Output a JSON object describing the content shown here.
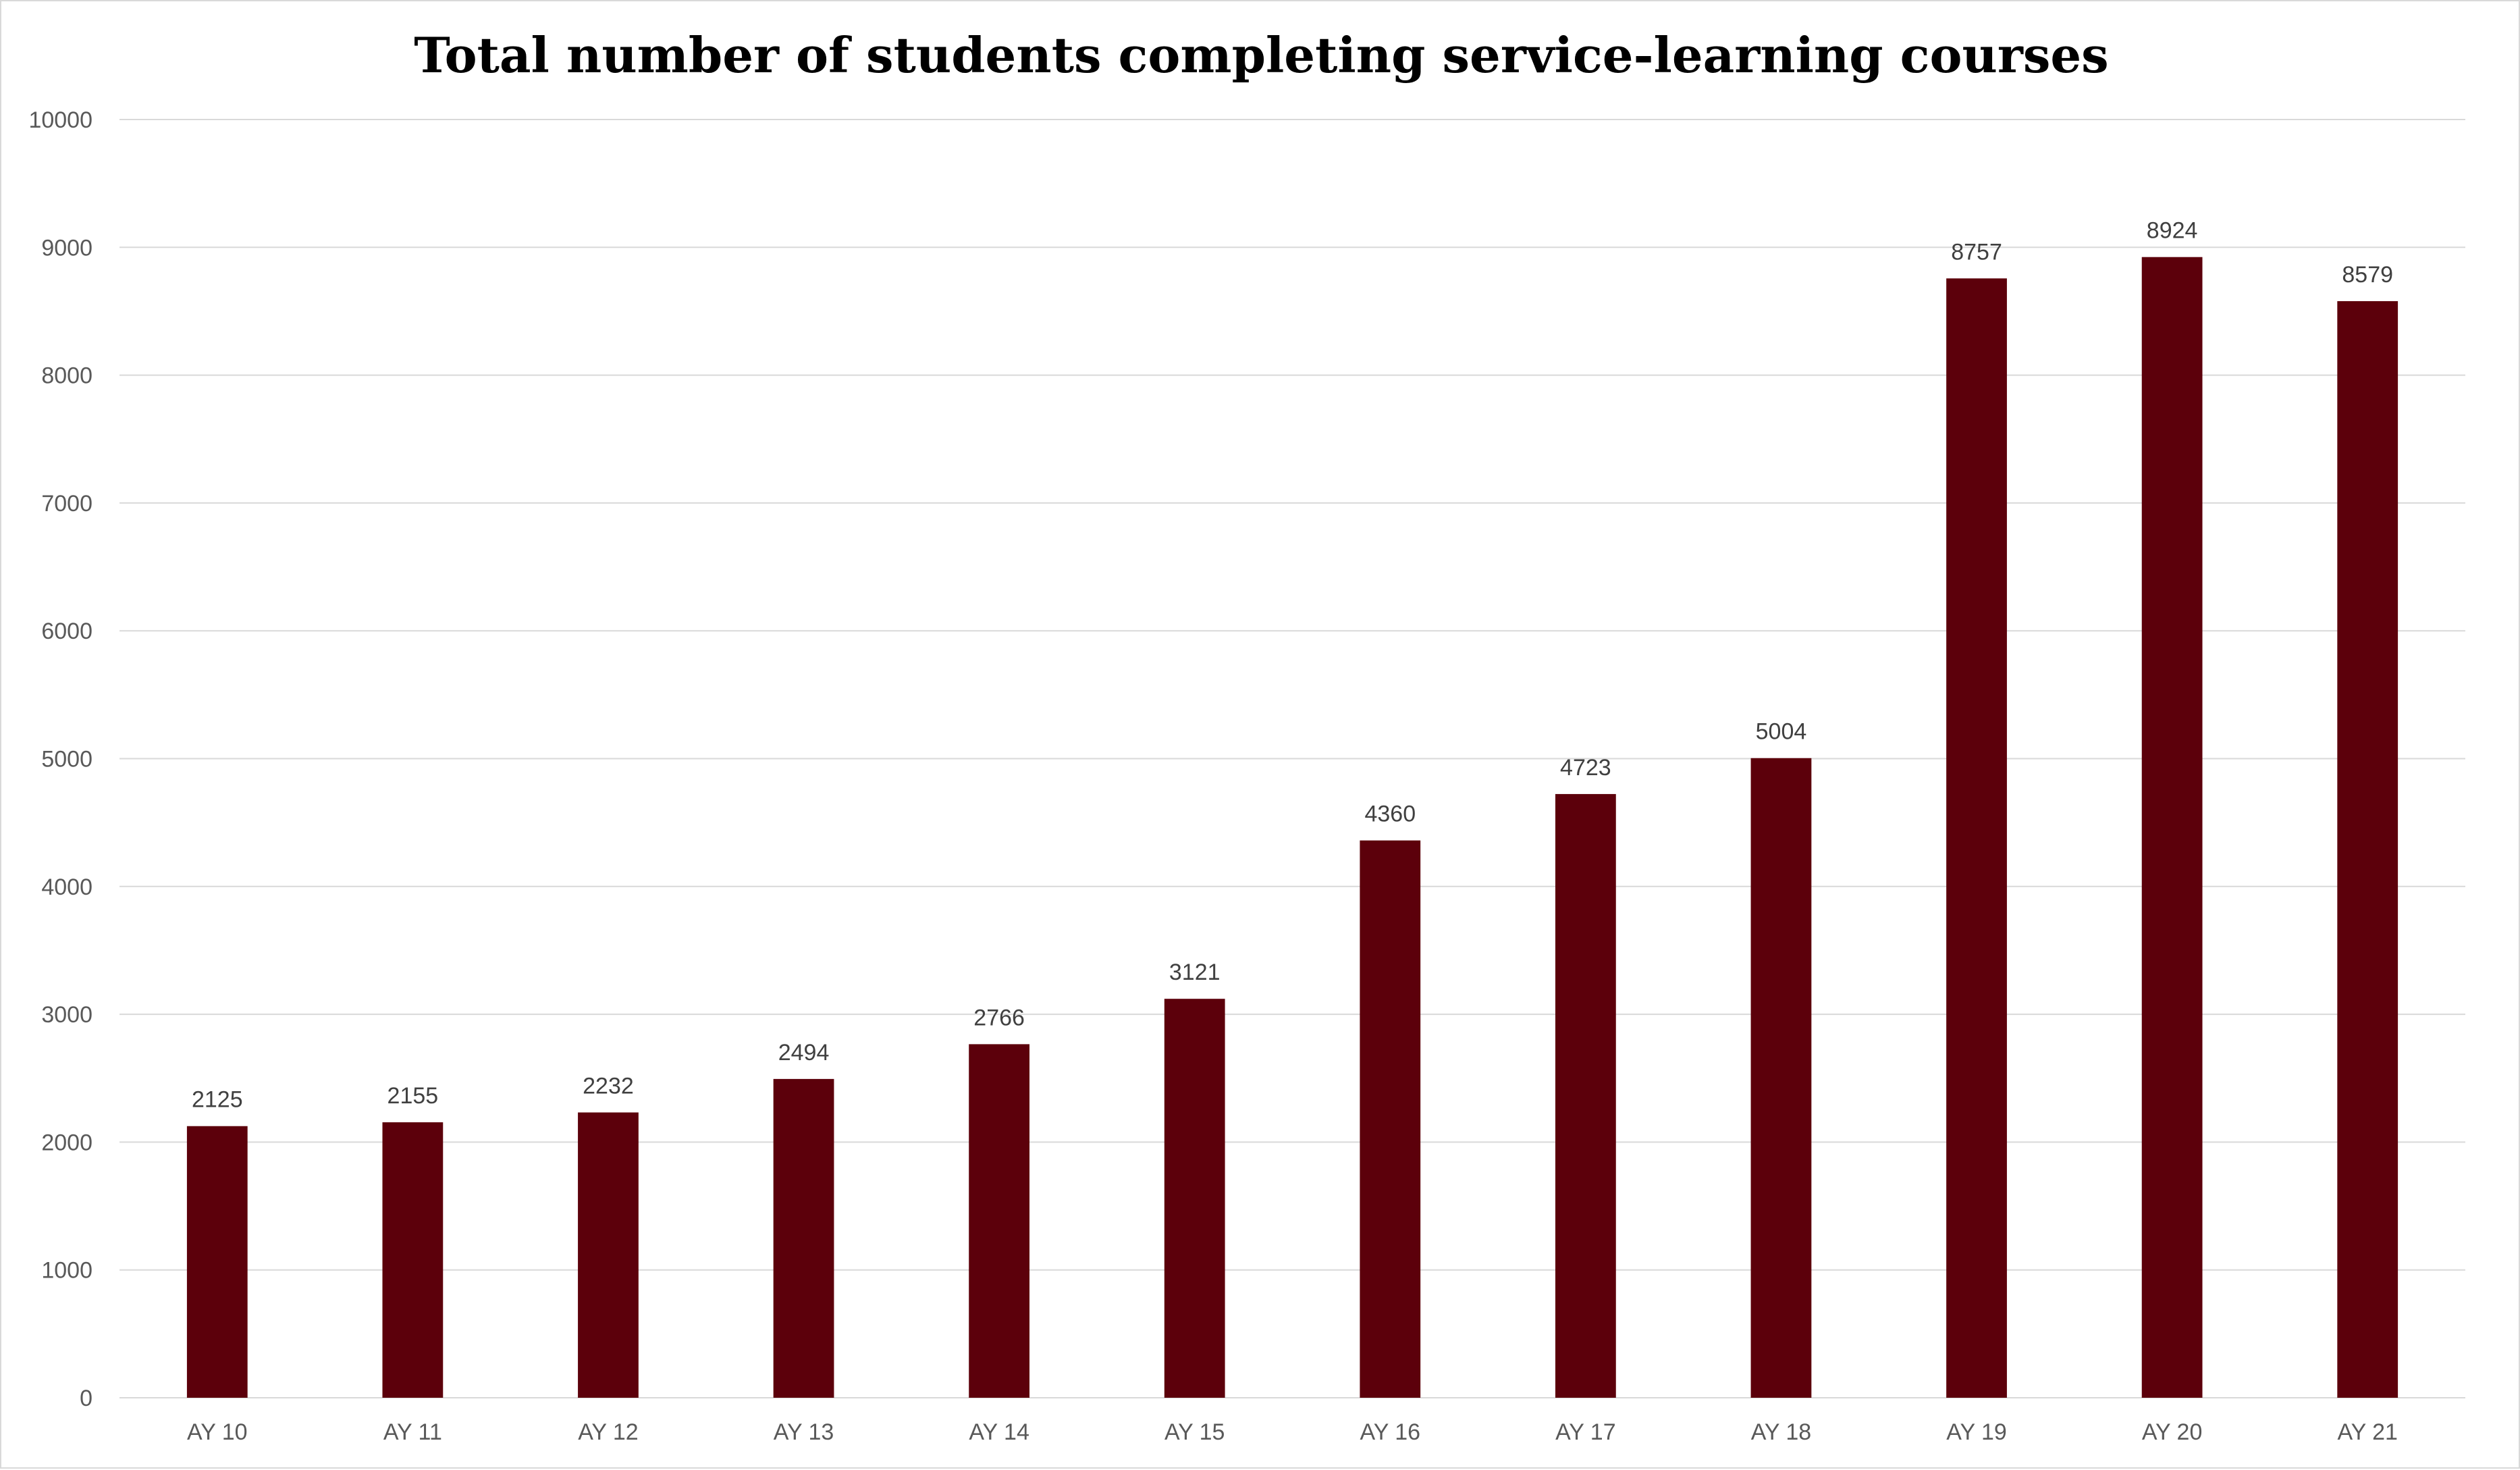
{
  "chart_data": {
    "type": "bar",
    "title": "Total number of students completing service-learning courses",
    "xlabel": "",
    "ylabel": "",
    "categories": [
      "AY 10",
      "AY 11",
      "AY 12",
      "AY 13",
      "AY 14",
      "AY 15",
      "AY 16",
      "AY 17",
      "AY 18",
      "AY 19",
      "AY 20",
      "AY 21"
    ],
    "values": [
      2125,
      2155,
      2232,
      2494,
      2766,
      3121,
      4360,
      4723,
      5004,
      8757,
      8924,
      8579
    ],
    "ylim": [
      0,
      10000
    ],
    "yticks": [
      0,
      1000,
      2000,
      3000,
      4000,
      5000,
      6000,
      7000,
      8000,
      9000,
      10000
    ],
    "grid": true,
    "legend": "none",
    "bar_color": "#5c000b",
    "data_labels": true
  }
}
